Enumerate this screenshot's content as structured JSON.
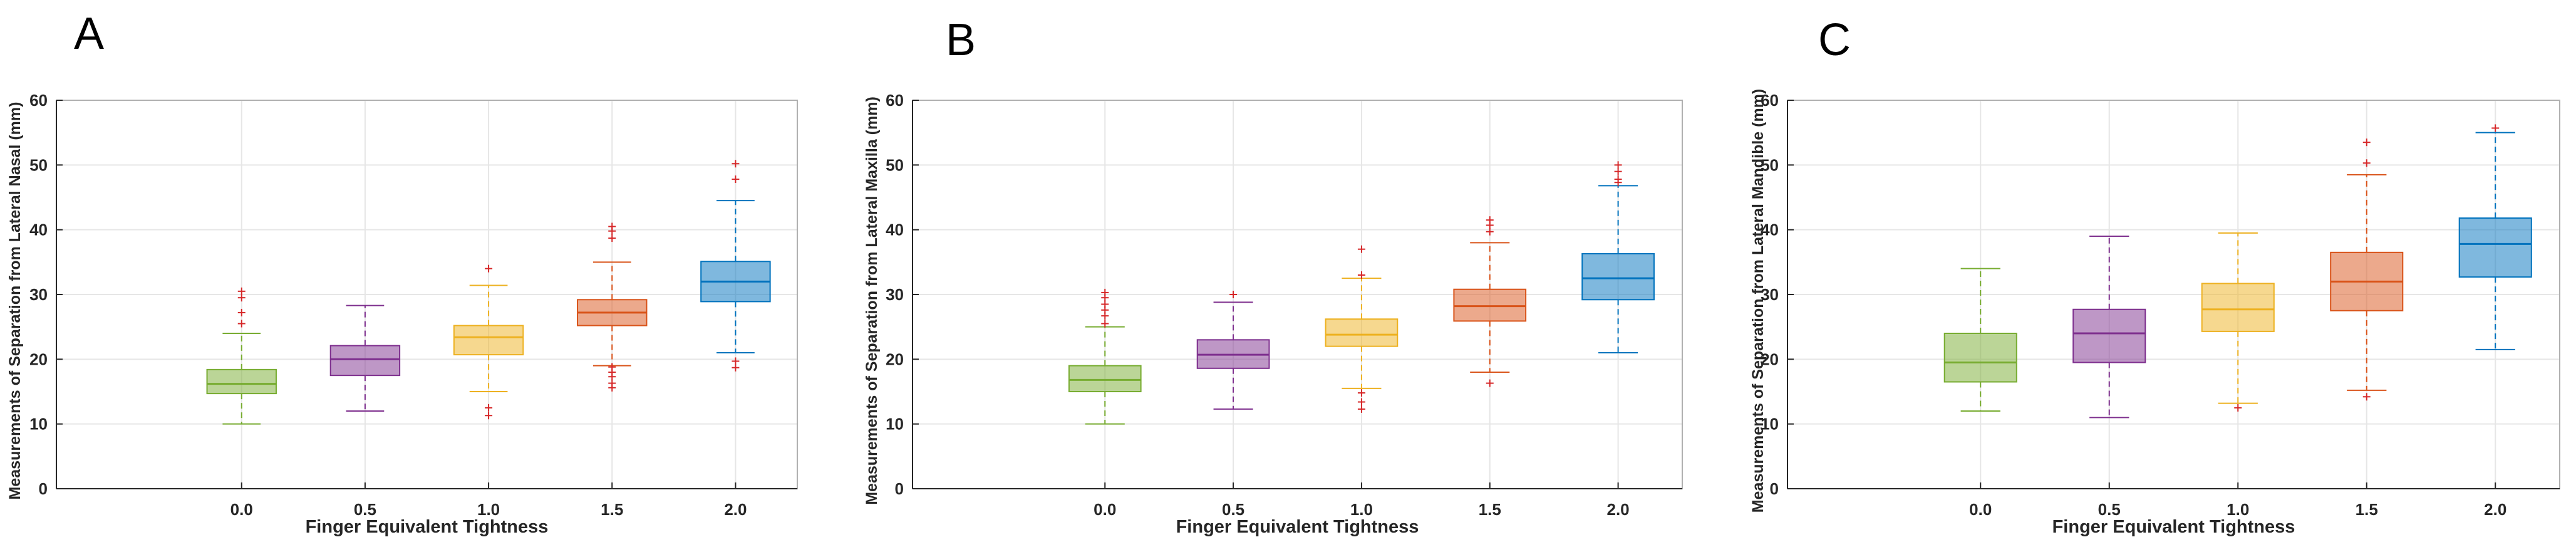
{
  "chart_data": [
    {
      "panel": "A",
      "type": "box",
      "xlabel": "Finger Equivalent Tightness",
      "ylabel": "Measurements of Separation from Lateral Nasal (mm)",
      "categories": [
        "0.0",
        "0.5",
        "1.0",
        "1.5",
        "2.0"
      ],
      "ylim": [
        0,
        60
      ],
      "yticks": [
        "0",
        "10",
        "20",
        "30",
        "40",
        "50",
        "60"
      ],
      "grid": true,
      "boxes": [
        {
          "category": "0.0",
          "whisker_low": 10,
          "q1": 14.7,
          "median": 16.2,
          "q3": 18.4,
          "whisker_high": 24,
          "outliers": [
            25.5,
            27.2,
            29.5,
            30.5
          ]
        },
        {
          "category": "0.5",
          "whisker_low": 12,
          "q1": 17.5,
          "median": 20,
          "q3": 22.1,
          "whisker_high": 28.3,
          "outliers": []
        },
        {
          "category": "1.0",
          "whisker_low": 15,
          "q1": 20.7,
          "median": 23.4,
          "q3": 25.2,
          "whisker_high": 31.4,
          "outliers": [
            11.3,
            12.5,
            34
          ]
        },
        {
          "category": "1.5",
          "whisker_low": 19,
          "q1": 25.2,
          "median": 27.2,
          "q3": 29.2,
          "whisker_high": 35,
          "outliers": [
            15.6,
            16.3,
            17.3,
            18,
            18.8,
            38.7,
            39.8,
            40.5
          ]
        },
        {
          "category": "2.0",
          "whisker_low": 21,
          "q1": 28.9,
          "median": 32,
          "q3": 35.1,
          "whisker_high": 44.5,
          "outliers": [
            18.7,
            19.7,
            47.8,
            50.2
          ]
        }
      ]
    },
    {
      "panel": "B",
      "type": "box",
      "xlabel": "Finger Equivalent Tightness",
      "ylabel": "Measurements of Separation from Lateral Maxilla (mm)",
      "categories": [
        "0.0",
        "0.5",
        "1.0",
        "1.5",
        "2.0"
      ],
      "ylim": [
        0,
        60
      ],
      "yticks": [
        "0",
        "10",
        "20",
        "30",
        "40",
        "50",
        "60"
      ],
      "grid": true,
      "boxes": [
        {
          "category": "0.0",
          "whisker_low": 10,
          "q1": 15,
          "median": 16.8,
          "q3": 19,
          "whisker_high": 25,
          "outliers": [
            25.5,
            26.7,
            27.6,
            28.5,
            29.5,
            30.3
          ]
        },
        {
          "category": "0.5",
          "whisker_low": 12.3,
          "q1": 18.6,
          "median": 20.7,
          "q3": 23,
          "whisker_high": 28.8,
          "outliers": [
            30
          ]
        },
        {
          "category": "1.0",
          "whisker_low": 15.5,
          "q1": 22,
          "median": 23.8,
          "q3": 26.2,
          "whisker_high": 32.5,
          "outliers": [
            12.3,
            13.4,
            14.8,
            33,
            37
          ]
        },
        {
          "category": "1.5",
          "whisker_low": 18,
          "q1": 25.9,
          "median": 28.2,
          "q3": 30.8,
          "whisker_high": 38,
          "outliers": [
            16.3,
            39.7,
            40.7,
            41.5
          ]
        },
        {
          "category": "2.0",
          "whisker_low": 21,
          "q1": 29.2,
          "median": 32.5,
          "q3": 36.3,
          "whisker_high": 46.8,
          "outliers": [
            47.3,
            47.8,
            49,
            50
          ]
        }
      ]
    },
    {
      "panel": "C",
      "type": "box",
      "xlabel": "Finger Equivalent Tightness",
      "ylabel": "Measurements of Separation from Lateral Mandible (mm)",
      "categories": [
        "0.0",
        "0.5",
        "1.0",
        "1.5",
        "2.0"
      ],
      "ylim": [
        0,
        60
      ],
      "yticks": [
        "0",
        "10",
        "20",
        "30",
        "40",
        "50",
        "60"
      ],
      "grid": true,
      "boxes": [
        {
          "category": "0.0",
          "whisker_low": 12,
          "q1": 16.5,
          "median": 19.5,
          "q3": 24,
          "whisker_high": 34,
          "outliers": []
        },
        {
          "category": "0.5",
          "whisker_low": 11,
          "q1": 19.5,
          "median": 24,
          "q3": 27.7,
          "whisker_high": 39,
          "outliers": []
        },
        {
          "category": "1.0",
          "whisker_low": 13.2,
          "q1": 24.3,
          "median": 27.7,
          "q3": 31.7,
          "whisker_high": 39.5,
          "outliers": [
            12.5
          ]
        },
        {
          "category": "1.5",
          "whisker_low": 15.2,
          "q1": 27.5,
          "median": 32,
          "q3": 36.5,
          "whisker_high": 48.5,
          "outliers": [
            14.2,
            50.3,
            53.5
          ]
        },
        {
          "category": "2.0",
          "whisker_low": 21.5,
          "q1": 32.7,
          "median": 37.8,
          "q3": 41.8,
          "whisker_high": 55,
          "outliers": [
            55.7
          ]
        }
      ]
    }
  ],
  "colors": {
    "fills": [
      "#77ac30",
      "#7e2f8e",
      "#edb120",
      "#d95319",
      "#0072bd"
    ],
    "outlier": "#d62728",
    "axis": "#262626",
    "grid": "#e6e6e6"
  }
}
